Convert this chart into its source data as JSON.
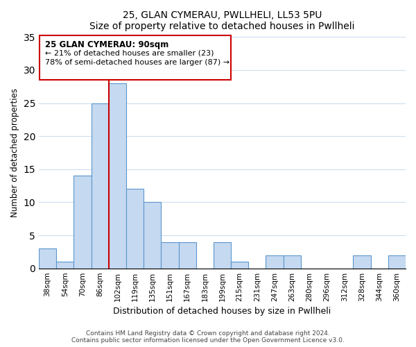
{
  "title1": "25, GLAN CYMERAU, PWLLHELI, LL53 5PU",
  "title2": "Size of property relative to detached houses in Pwllheli",
  "xlabel": "Distribution of detached houses by size in Pwllheli",
  "ylabel": "Number of detached properties",
  "footer1": "Contains HM Land Registry data © Crown copyright and database right 2024.",
  "footer2": "Contains public sector information licensed under the Open Government Licence v3.0.",
  "annotation_line1": "25 GLAN CYMERAU: 90sqm",
  "annotation_line2": "← 21% of detached houses are smaller (23)",
  "annotation_line3": "78% of semi-detached houses are larger (87) →",
  "bar_color": "#c5d9f0",
  "bar_edge_color": "#5a96cc",
  "vline_color": "#cc0000",
  "vline_x": 3.5,
  "ylim": [
    0,
    35
  ],
  "yticks": [
    0,
    5,
    10,
    15,
    20,
    25,
    30,
    35
  ],
  "bins": [
    "38sqm",
    "54sqm",
    "70sqm",
    "86sqm",
    "102sqm",
    "119sqm",
    "135sqm",
    "151sqm",
    "167sqm",
    "183sqm",
    "199sqm",
    "215sqm",
    "231sqm",
    "247sqm",
    "263sqm",
    "280sqm",
    "296sqm",
    "312sqm",
    "328sqm",
    "344sqm",
    "360sqm"
  ],
  "values": [
    3,
    1,
    14,
    25,
    28,
    12,
    10,
    4,
    4,
    0,
    4,
    1,
    0,
    2,
    2,
    0,
    0,
    0,
    2,
    0,
    2
  ]
}
